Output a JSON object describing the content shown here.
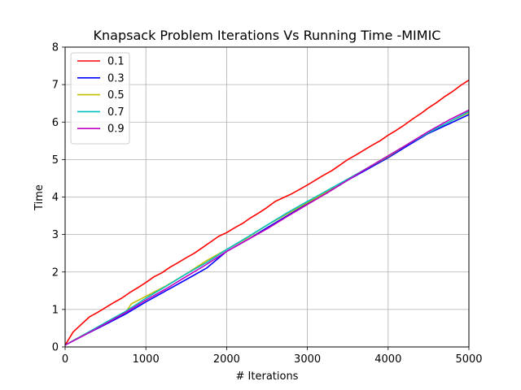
{
  "chart_data": {
    "type": "line",
    "title": "Knapsack Problem Iterations Vs Running Time -MIMIC",
    "xlabel": "# Iterations",
    "ylabel": "Time",
    "xlim": [
      0,
      5000
    ],
    "ylim": [
      0,
      8
    ],
    "xticks": [
      "0",
      "1000",
      "2000",
      "3000",
      "4000",
      "5000"
    ],
    "yticks": [
      "0",
      "1",
      "2",
      "3",
      "4",
      "5",
      "6",
      "7",
      "8"
    ],
    "grid": true,
    "legend_position": "top-left",
    "series": [
      {
        "name": "0.1",
        "color": "#ff0000",
        "x": [
          0,
          100,
          200,
          300,
          400,
          500,
          600,
          700,
          800,
          900,
          1000,
          1100,
          1200,
          1300,
          1400,
          1500,
          1600,
          1700,
          1800,
          1900,
          2000,
          2100,
          2200,
          2300,
          2400,
          2500,
          2600,
          2700,
          2800,
          2900,
          3000,
          3100,
          3200,
          3300,
          3400,
          3500,
          3600,
          3700,
          3800,
          3900,
          4000,
          4100,
          4200,
          4300,
          4400,
          4500,
          4600,
          4700,
          4800,
          4900,
          5000
        ],
        "values": [
          0.05,
          0.4,
          0.6,
          0.8,
          0.92,
          1.05,
          1.18,
          1.3,
          1.45,
          1.58,
          1.72,
          1.87,
          1.98,
          2.13,
          2.25,
          2.38,
          2.5,
          2.65,
          2.8,
          2.95,
          3.05,
          3.18,
          3.3,
          3.45,
          3.58,
          3.72,
          3.88,
          3.98,
          4.08,
          4.2,
          4.32,
          4.45,
          4.58,
          4.7,
          4.85,
          5.0,
          5.12,
          5.25,
          5.38,
          5.5,
          5.65,
          5.78,
          5.92,
          6.08,
          6.22,
          6.38,
          6.52,
          6.68,
          6.82,
          6.98,
          7.12
        ]
      },
      {
        "name": "0.3",
        "color": "#0000ff",
        "x": [
          0,
          250,
          500,
          750,
          1000,
          1250,
          1500,
          1750,
          2000,
          2250,
          2500,
          2750,
          3000,
          3250,
          3500,
          3750,
          4000,
          4250,
          4500,
          4750,
          5000
        ],
        "values": [
          0.05,
          0.33,
          0.6,
          0.88,
          1.2,
          1.5,
          1.8,
          2.1,
          2.55,
          2.85,
          3.18,
          3.5,
          3.82,
          4.12,
          4.45,
          4.75,
          5.05,
          5.38,
          5.7,
          5.95,
          6.2
        ]
      },
      {
        "name": "0.5",
        "color": "#bfbf00",
        "x": [
          0,
          250,
          500,
          750,
          820,
          1000,
          1250,
          1500,
          1750,
          2000,
          2250,
          2500,
          2750,
          3000,
          3250,
          3500,
          3750,
          4000,
          4250,
          4500,
          4750,
          5000
        ],
        "values": [
          0.05,
          0.35,
          0.63,
          0.92,
          1.15,
          1.35,
          1.63,
          1.95,
          2.3,
          2.6,
          2.9,
          3.25,
          3.55,
          3.85,
          4.15,
          4.48,
          4.78,
          5.08,
          5.42,
          5.72,
          6.0,
          6.25
        ]
      },
      {
        "name": "0.7",
        "color": "#00bfbf",
        "x": [
          0,
          250,
          500,
          750,
          1000,
          1250,
          1500,
          1750,
          2000,
          2250,
          2500,
          2750,
          3000,
          3250,
          3500,
          3750,
          4000,
          4250,
          4500,
          4750,
          5000
        ],
        "values": [
          0.05,
          0.35,
          0.65,
          0.95,
          1.3,
          1.62,
          1.95,
          2.25,
          2.6,
          2.92,
          3.25,
          3.58,
          3.88,
          4.18,
          4.48,
          4.78,
          5.1,
          5.42,
          5.72,
          6.0,
          6.28
        ]
      },
      {
        "name": "0.9",
        "color": "#bf00bf",
        "x": [
          0,
          250,
          500,
          750,
          1000,
          1250,
          1500,
          1750,
          2000,
          2250,
          2500,
          2750,
          3000,
          3250,
          3500,
          3750,
          4000,
          4250,
          4500,
          4750,
          5000
        ],
        "values": [
          0.05,
          0.33,
          0.62,
          0.92,
          1.25,
          1.55,
          1.88,
          2.2,
          2.55,
          2.85,
          3.15,
          3.48,
          3.8,
          4.12,
          4.45,
          4.78,
          5.1,
          5.42,
          5.75,
          6.05,
          6.32
        ]
      }
    ]
  }
}
